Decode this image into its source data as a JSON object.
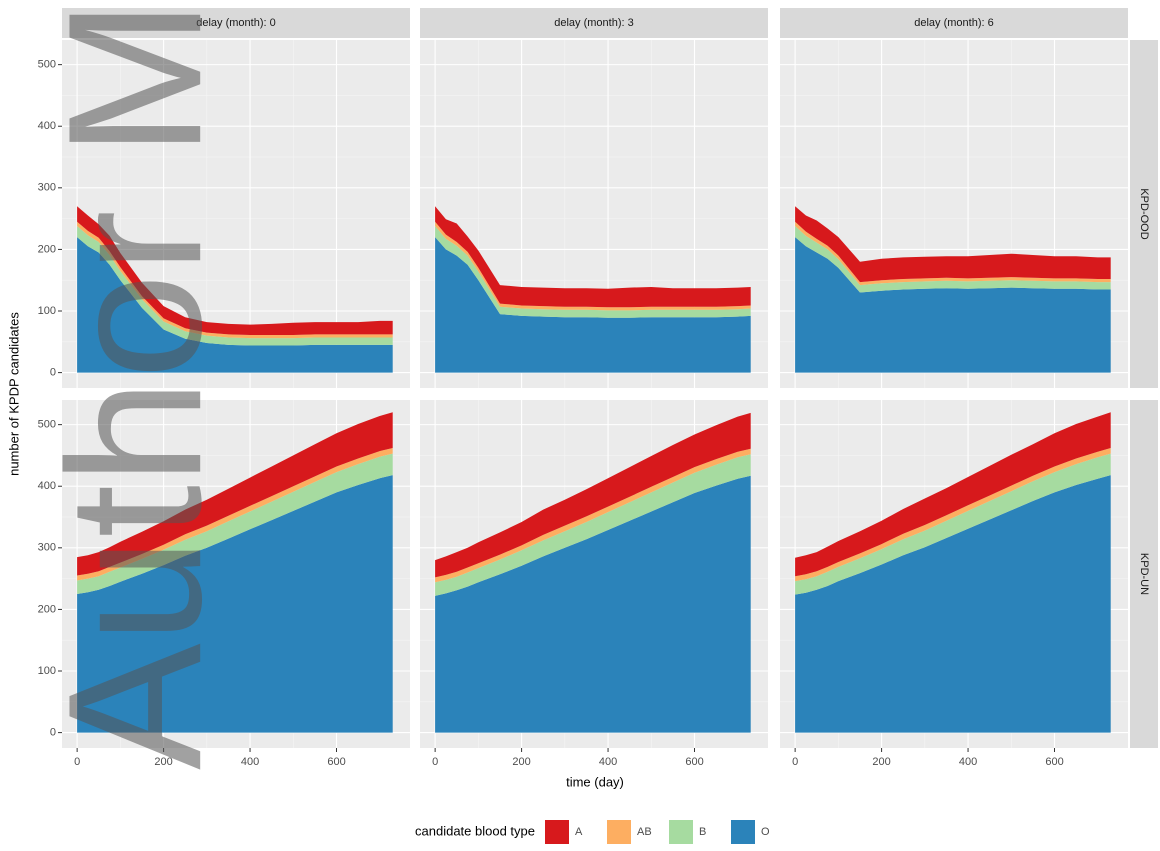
{
  "watermark": "Author Ma",
  "chart_data": {
    "type": "area",
    "columns": [
      "delay (month): 0",
      "delay (month): 3",
      "delay (month): 6"
    ],
    "rows": [
      "KPD-OOD",
      "KPD-UN"
    ],
    "x_label": "time (day)",
    "y_label": "number of KPDP candidates",
    "legend_title": "candidate blood type",
    "legend_position": "bottom",
    "grid": true,
    "xlim": [
      -35,
      770
    ],
    "xticks": [
      0,
      200,
      400,
      600
    ],
    "ylim": [
      -25,
      540
    ],
    "yticks": [
      0,
      100,
      200,
      300,
      400,
      500
    ],
    "x": [
      0,
      25,
      50,
      75,
      100,
      150,
      200,
      250,
      300,
      350,
      400,
      450,
      500,
      550,
      600,
      650,
      700,
      730
    ],
    "series": [
      {
        "name": "A",
        "color": "#d7191c"
      },
      {
        "name": "AB",
        "color": "#fdae61"
      },
      {
        "name": "B",
        "color": "#a6dba0"
      },
      {
        "name": "O",
        "color": "#2b83ba"
      }
    ],
    "panels": [
      {
        "values": [
          [
            25,
            25,
            22,
            25,
            23,
            22,
            20,
            18,
            17,
            17,
            17,
            18,
            20,
            20,
            20,
            20,
            22,
            22
          ],
          [
            7,
            7,
            7,
            6,
            6,
            5,
            5,
            5,
            5,
            5,
            5,
            5,
            5,
            5,
            5,
            5,
            5,
            5
          ],
          [
            18,
            18,
            17,
            16,
            15,
            14,
            13,
            12,
            12,
            12,
            12,
            12,
            12,
            12,
            12,
            12,
            12,
            12
          ],
          [
            220,
            205,
            195,
            175,
            150,
            105,
            70,
            55,
            48,
            45,
            44,
            44,
            44,
            45,
            45,
            45,
            45,
            45
          ]
        ]
      },
      {
        "values": [
          [
            25,
            25,
            30,
            25,
            28,
            30,
            30,
            30,
            30,
            30,
            30,
            32,
            32,
            30,
            30,
            30,
            30,
            30
          ],
          [
            7,
            7,
            6,
            6,
            6,
            5,
            5,
            5,
            5,
            5,
            5,
            5,
            5,
            5,
            5,
            5,
            5,
            5
          ],
          [
            18,
            17,
            16,
            15,
            14,
            12,
            12,
            12,
            12,
            12,
            12,
            12,
            12,
            12,
            12,
            12,
            12,
            12
          ],
          [
            220,
            200,
            190,
            175,
            150,
            95,
            92,
            91,
            90,
            90,
            89,
            89,
            90,
            90,
            90,
            90,
            91,
            92
          ]
        ]
      },
      {
        "values": [
          [
            25,
            26,
            30,
            28,
            30,
            33,
            35,
            35,
            35,
            35,
            36,
            37,
            38,
            37,
            36,
            36,
            35,
            35
          ],
          [
            7,
            7,
            6,
            6,
            6,
            5,
            5,
            5,
            5,
            5,
            5,
            5,
            5,
            5,
            5,
            5,
            5,
            5
          ],
          [
            18,
            17,
            16,
            15,
            14,
            12,
            12,
            12,
            12,
            12,
            12,
            12,
            12,
            12,
            12,
            12,
            12,
            12
          ],
          [
            220,
            205,
            195,
            185,
            170,
            130,
            133,
            135,
            136,
            137,
            136,
            137,
            138,
            137,
            136,
            136,
            135,
            135
          ]
        ]
      },
      {
        "values": [
          [
            30,
            30,
            31,
            32,
            34,
            36,
            38,
            40,
            42,
            44,
            46,
            48,
            50,
            52,
            54,
            56,
            57,
            58
          ],
          [
            8,
            8,
            8,
            8,
            8,
            8,
            8,
            9,
            9,
            9,
            9,
            9,
            9,
            9,
            9,
            9,
            9,
            9
          ],
          [
            22,
            22,
            22,
            23,
            23,
            24,
            25,
            26,
            27,
            28,
            29,
            30,
            31,
            32,
            33,
            34,
            35,
            35
          ],
          [
            225,
            228,
            232,
            238,
            245,
            258,
            272,
            287,
            300,
            315,
            330,
            345,
            360,
            375,
            390,
            402,
            413,
            418
          ]
        ]
      },
      {
        "values": [
          [
            28,
            30,
            32,
            32,
            34,
            36,
            38,
            41,
            42,
            44,
            46,
            48,
            50,
            52,
            53,
            55,
            57,
            58
          ],
          [
            8,
            8,
            8,
            8,
            8,
            8,
            8,
            9,
            9,
            9,
            9,
            9,
            9,
            9,
            9,
            9,
            9,
            9
          ],
          [
            22,
            22,
            22,
            23,
            23,
            24,
            25,
            26,
            27,
            28,
            29,
            30,
            31,
            32,
            33,
            34,
            35,
            35
          ],
          [
            222,
            226,
            231,
            237,
            244,
            257,
            271,
            286,
            300,
            314,
            329,
            344,
            359,
            374,
            389,
            401,
            412,
            417
          ]
        ]
      },
      {
        "values": [
          [
            30,
            31,
            31,
            33,
            34,
            36,
            38,
            40,
            43,
            44,
            46,
            48,
            50,
            51,
            54,
            56,
            57,
            58
          ],
          [
            8,
            8,
            8,
            8,
            8,
            8,
            8,
            9,
            9,
            9,
            9,
            9,
            9,
            9,
            9,
            9,
            9,
            9
          ],
          [
            22,
            22,
            22,
            23,
            23,
            24,
            25,
            26,
            27,
            28,
            29,
            30,
            31,
            32,
            33,
            34,
            35,
            35
          ],
          [
            224,
            227,
            232,
            238,
            246,
            259,
            273,
            288,
            301,
            316,
            331,
            346,
            361,
            376,
            390,
            402,
            412,
            418
          ]
        ]
      }
    ]
  }
}
